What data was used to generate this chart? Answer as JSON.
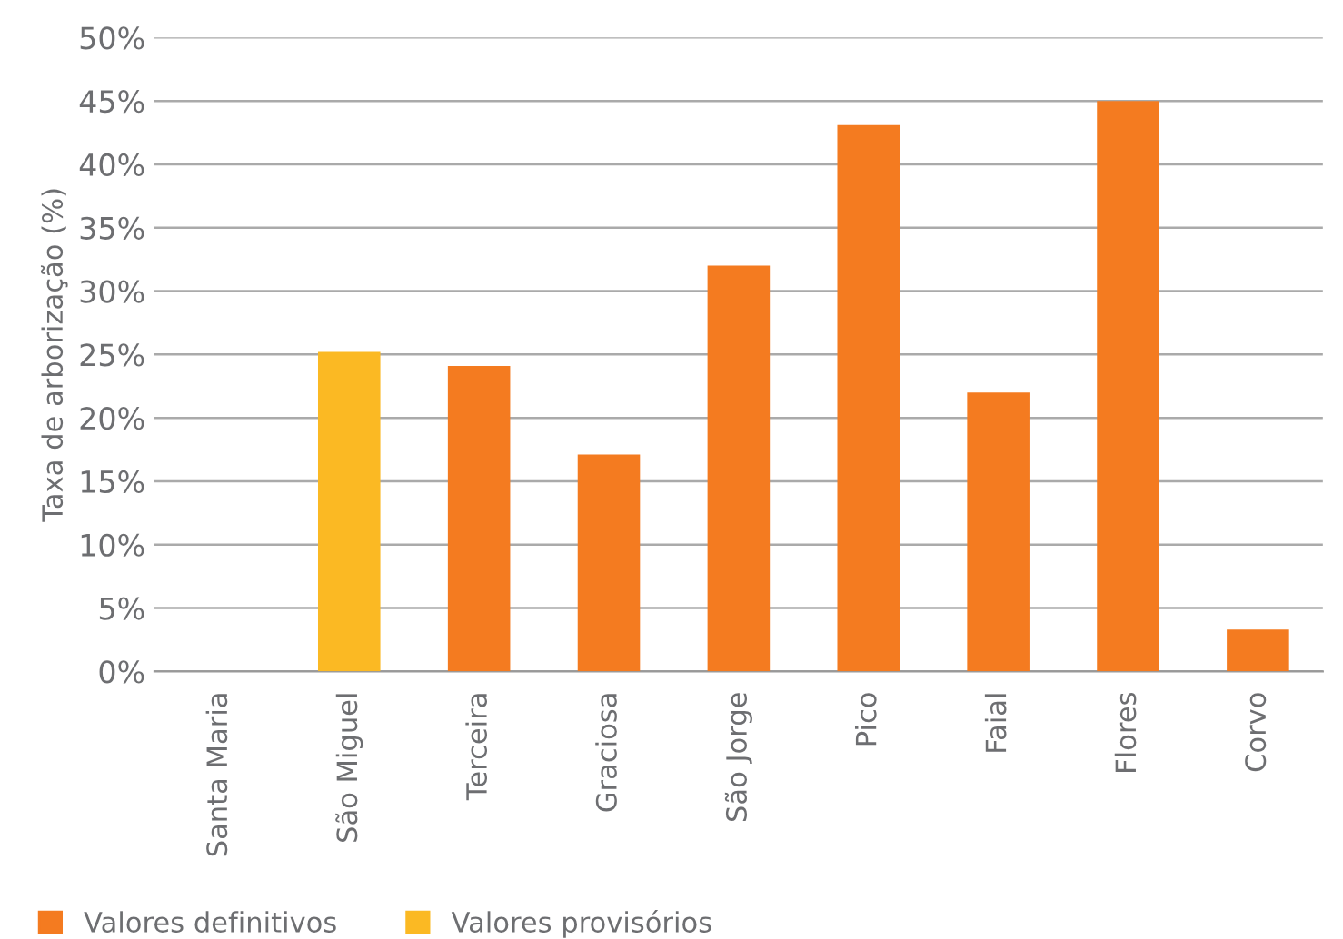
{
  "chart_data": {
    "type": "bar",
    "ylabel": "Taxa de arborização (%)",
    "categories": [
      "Santa Maria",
      "São Miguel",
      "Terceira",
      "Graciosa",
      "São Jorge",
      "Pico",
      "Faial",
      "Flores",
      "Corvo"
    ],
    "series": [
      {
        "name": "Valores definitivos",
        "color": "#f47b20",
        "values": [
          null,
          null,
          24.1,
          17.1,
          32.0,
          43.1,
          22.0,
          45.0,
          3.3
        ]
      },
      {
        "name": "Valores provisórios",
        "color": "#fbb923",
        "values": [
          null,
          25.2,
          null,
          null,
          null,
          null,
          null,
          null,
          null
        ]
      }
    ],
    "ylim": [
      0,
      50
    ],
    "yticks": [
      {
        "value": 0,
        "label": "0%"
      },
      {
        "value": 5,
        "label": "5%"
      },
      {
        "value": 10,
        "label": "10%"
      },
      {
        "value": 15,
        "label": "15%"
      },
      {
        "value": 20,
        "label": "20%"
      },
      {
        "value": 25,
        "label": "25%"
      },
      {
        "value": 30,
        "label": "30%"
      },
      {
        "value": 35,
        "label": "35%"
      },
      {
        "value": 40,
        "label": "40%"
      },
      {
        "value": 45,
        "label": "45%"
      },
      {
        "value": 50,
        "label": "50%"
      }
    ],
    "grid": "y",
    "legend": "bottom left"
  }
}
